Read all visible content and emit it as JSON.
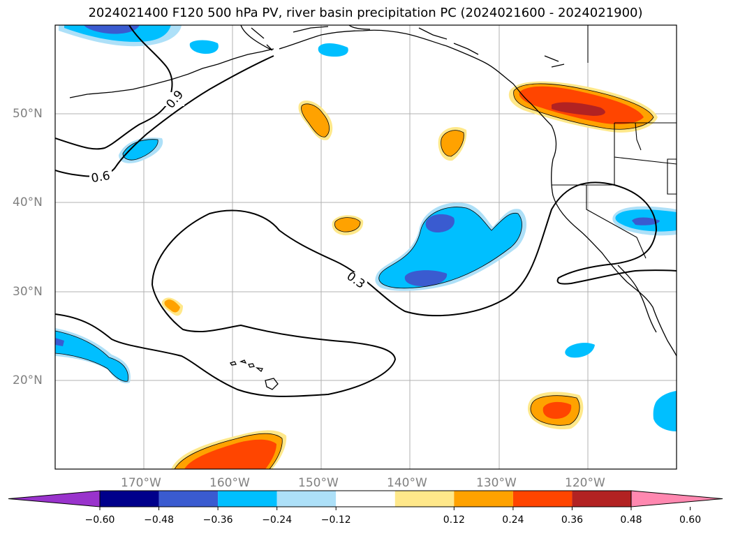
{
  "title": "2024021400 F120 500 hPa PV, river basin precipitation PC (2024021600 - 2024021900)",
  "lat_labels": [
    "50°N",
    "40°N",
    "30°N",
    "20°N"
  ],
  "lon_labels": [
    "170°W",
    "160°W",
    "150°W",
    "140°W",
    "130°W",
    "120°W"
  ],
  "contour_labels": [
    "0.9",
    "0.6",
    "0.3"
  ],
  "colorbar": {
    "ticks": [
      "−0.60",
      "−0.48",
      "−0.36",
      "−0.24",
      "−0.12",
      "0.12",
      "0.24",
      "0.36",
      "0.48",
      "0.60"
    ],
    "colors": [
      "#9933cc",
      "#00008b",
      "#3a5bd0",
      "#00bfff",
      "#ade0f8",
      "#ffffff",
      "#ffe88a",
      "#ffa200",
      "#ff4500",
      "#b22222",
      "#ff88b0"
    ]
  }
}
